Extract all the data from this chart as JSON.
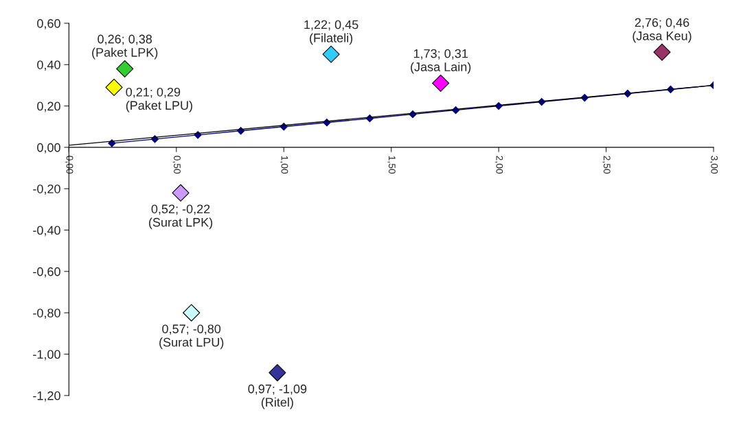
{
  "chart_data": {
    "type": "scatter",
    "xlim": [
      0,
      3
    ],
    "xticks": [
      {
        "value": 0,
        "label": "0,00"
      },
      {
        "value": 0.5,
        "label": "0,50"
      },
      {
        "value": 1,
        "label": "1,00"
      },
      {
        "value": 1.5,
        "label": "1,50"
      },
      {
        "value": 2,
        "label": "2,00"
      },
      {
        "value": 2.5,
        "label": "2,50"
      },
      {
        "value": 3,
        "label": "3,00"
      }
    ],
    "ylim": [
      -1.2,
      0.6
    ],
    "yticks": [
      {
        "value": -1.2,
        "label": "-1,20"
      },
      {
        "value": -1.0,
        "label": "-1,00"
      },
      {
        "value": -0.8,
        "label": "-0,80"
      },
      {
        "value": -0.6,
        "label": "-0,60"
      },
      {
        "value": -0.4,
        "label": "-0,40"
      },
      {
        "value": -0.2,
        "label": "-0,20"
      },
      {
        "value": 0,
        "label": "0,00"
      },
      {
        "value": 0.2,
        "label": "0,20"
      },
      {
        "value": 0.4,
        "label": "0,40"
      },
      {
        "value": 0.6,
        "label": "0,60"
      }
    ],
    "grid": false,
    "legend": false,
    "series": [
      {
        "type": "line",
        "x": [
          0.2,
          0.4,
          0.6,
          0.8,
          1.0,
          1.2,
          1.4,
          1.6,
          1.8,
          2.0,
          2.2,
          2.4,
          2.6,
          2.8,
          3.0
        ],
        "values": [
          0.02,
          0.04,
          0.06,
          0.08,
          0.1,
          0.12,
          0.14,
          0.16,
          0.18,
          0.2,
          0.22,
          0.24,
          0.26,
          0.28,
          0.3
        ],
        "color": "#000080",
        "marker": "diamond"
      },
      {
        "type": "line",
        "x": [
          0,
          3
        ],
        "values": [
          0.01,
          0.3
        ],
        "color": "#000000",
        "marker": "none"
      },
      {
        "x": [
          0.26,
          0.21,
          1.22,
          1.73,
          2.76,
          0.52,
          0.57,
          0.97
        ],
        "values": [
          0.38,
          0.29,
          0.45,
          0.31,
          0.46,
          -0.22,
          -0.8,
          -1.09
        ],
        "colors": [
          "#33cc33",
          "#ffff00",
          "#33ccff",
          "#ff00ff",
          "#993366",
          "#cc99ff",
          "#ccffff",
          "#333399"
        ],
        "marker": "diamond"
      }
    ],
    "annotations": [
      {
        "text": "0,26; 0,38\n(Paket LPK)",
        "x": 0.26,
        "y": 0.38
      },
      {
        "text": "0,21; 0,29\n(Paket LPU)",
        "x": 0.21,
        "y": 0.29
      },
      {
        "text": "1,22; 0,45\n(Filateli)",
        "x": 1.22,
        "y": 0.45
      },
      {
        "text": "1,73; 0,31\n(Jasa Lain)",
        "x": 1.73,
        "y": 0.31
      },
      {
        "text": "2,76; 0,46\n(Jasa Keu)",
        "x": 2.76,
        "y": 0.46
      },
      {
        "text": "0,52; -0,22\n(Surat LPK)",
        "x": 0.52,
        "y": -0.22
      },
      {
        "text": "0,57; -0,80\n(Surat LPU)",
        "x": 0.57,
        "y": -0.8
      },
      {
        "text": "0,97; -1,09\n(Ritel)",
        "x": 0.97,
        "y": -1.09
      }
    ]
  }
}
